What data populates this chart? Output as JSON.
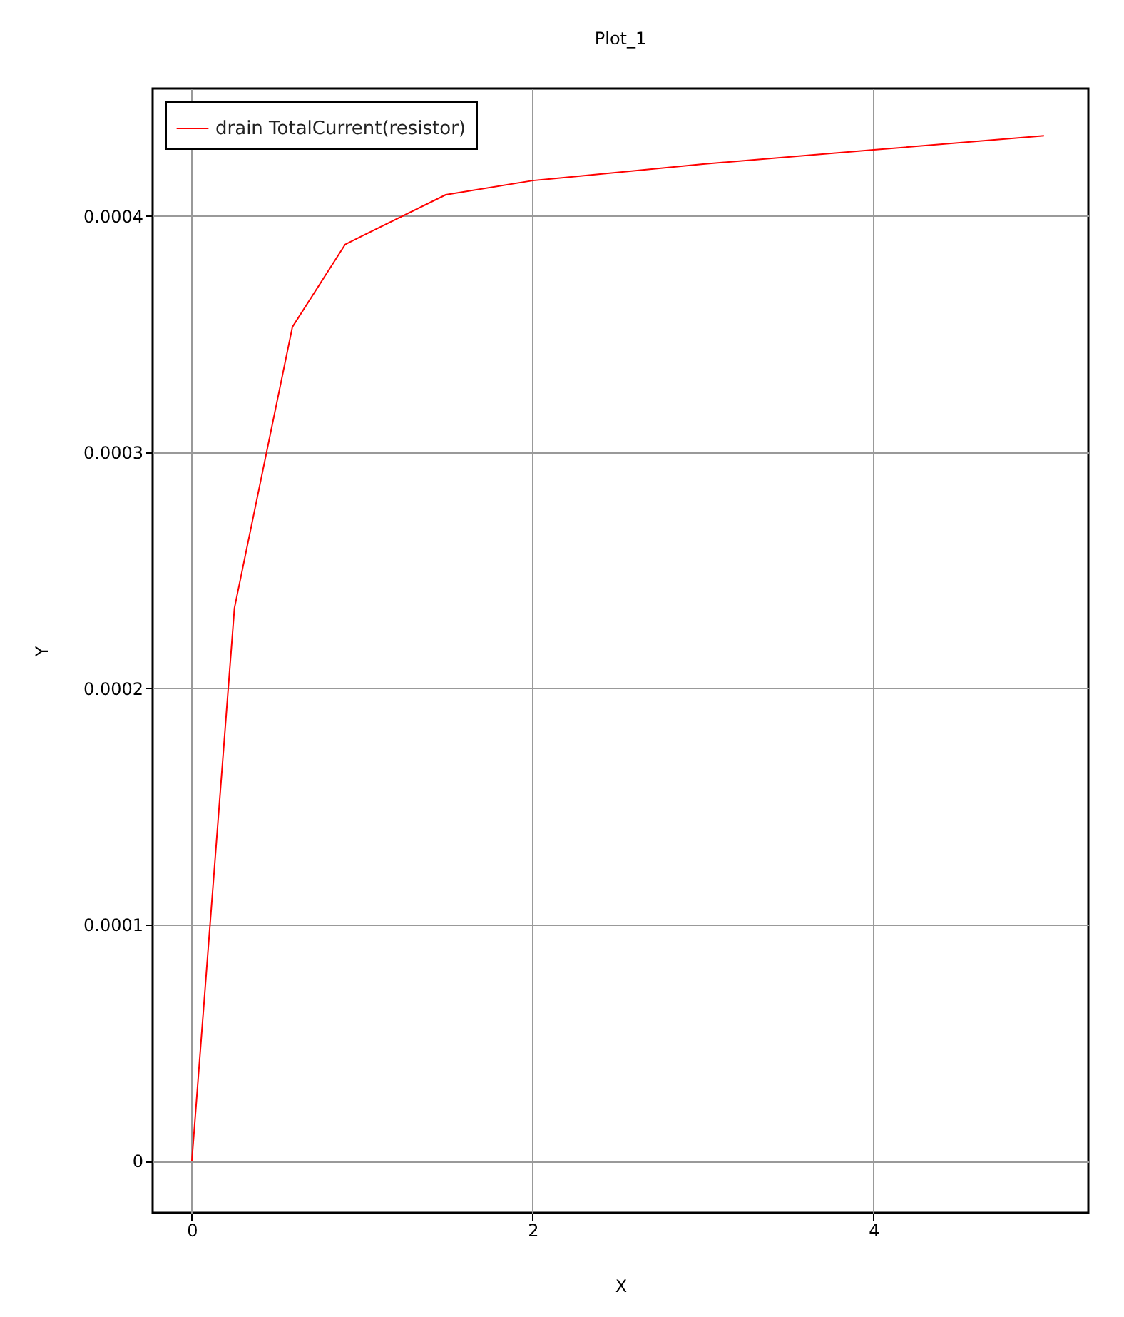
{
  "chart_data": {
    "type": "line",
    "title": "Plot_1",
    "xlabel": "X",
    "ylabel": "Y",
    "x": [
      0,
      0.25,
      0.59,
      0.9,
      1.49,
      2,
      3,
      4,
      5
    ],
    "series": [
      {
        "name": "drain TotalCurrent(resistor)",
        "color": "#ff0000",
        "values": [
          0,
          0.000234,
          0.000353,
          0.000388,
          0.000409,
          0.000415,
          0.000422,
          0.000428,
          0.000434
        ]
      }
    ],
    "xlim": [
      -0.23,
      5.26
    ],
    "ylim": [
      -2.2e-05,
      0.000454
    ],
    "xticks": [
      0,
      2,
      4
    ],
    "yticks": [
      0,
      0.0001,
      0.0002,
      0.0003,
      0.0004
    ],
    "grid": true,
    "legend": "top left",
    "marker": "none",
    "line_style": "solid"
  }
}
